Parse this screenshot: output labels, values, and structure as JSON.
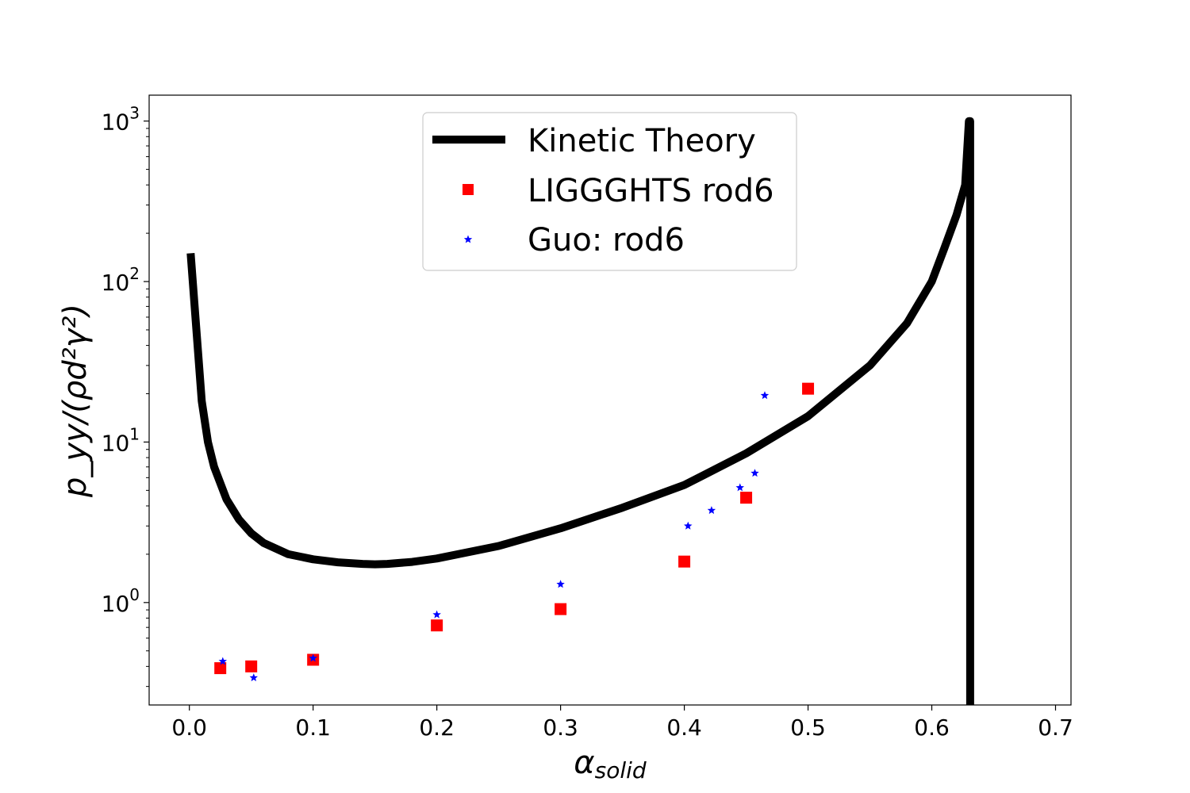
{
  "chart_data": {
    "type": "scatter",
    "xlabel_base": "α",
    "xlabel_sub": "solid",
    "ylabel": "p_yy/(ρd²γ²)",
    "xlim": [
      -0.0325,
      0.7125
    ],
    "ylim": [
      0.23,
      1450
    ],
    "yscale": "log",
    "xticks": [
      0.0,
      0.1,
      0.2,
      0.3,
      0.4,
      0.5,
      0.6,
      0.7
    ],
    "xtick_labels": [
      "0.0",
      "0.1",
      "0.2",
      "0.3",
      "0.4",
      "0.5",
      "0.6",
      "0.7"
    ],
    "yticks": [
      1,
      10,
      100,
      1000
    ],
    "ytick_labels": [
      {
        "base": "10",
        "exp": "0"
      },
      {
        "base": "10",
        "exp": "1"
      },
      {
        "base": "10",
        "exp": "2"
      },
      {
        "base": "10",
        "exp": "3"
      }
    ],
    "grid": false,
    "legend_position": "top-center",
    "series": [
      {
        "name": "Kinetic Theory",
        "kind": "line",
        "color": "#000000",
        "x": [
          0.001,
          0.01,
          0.015,
          0.02,
          0.03,
          0.04,
          0.05,
          0.06,
          0.08,
          0.1,
          0.12,
          0.14,
          0.15,
          0.16,
          0.18,
          0.2,
          0.25,
          0.3,
          0.35,
          0.4,
          0.45,
          0.5,
          0.55,
          0.58,
          0.6,
          0.61,
          0.62,
          0.627,
          0.63,
          0.631,
          0.631
        ],
        "y": [
          150,
          18,
          10,
          7,
          4.4,
          3.3,
          2.7,
          2.35,
          2.0,
          1.86,
          1.78,
          1.74,
          1.73,
          1.74,
          1.79,
          1.88,
          2.25,
          2.9,
          3.9,
          5.4,
          8.5,
          14.5,
          30,
          55,
          100,
          160,
          260,
          400,
          1000,
          1000,
          0.23
        ]
      },
      {
        "name": "LIGGGHTS rod6",
        "kind": "square",
        "color": "#ff0000",
        "x": [
          0.025,
          0.05,
          0.1,
          0.2,
          0.3,
          0.4,
          0.45,
          0.5
        ],
        "y": [
          0.39,
          0.4,
          0.44,
          0.72,
          0.91,
          1.8,
          4.5,
          21.5
        ]
      },
      {
        "name": "Guo: rod6",
        "kind": "star",
        "color": "#0000ff",
        "x": [
          0.027,
          0.052,
          0.1,
          0.2,
          0.3,
          0.403,
          0.422,
          0.445,
          0.457,
          0.465
        ],
        "y": [
          0.43,
          0.34,
          0.45,
          0.84,
          1.3,
          3.0,
          3.75,
          5.2,
          6.4,
          19.5
        ]
      }
    ]
  }
}
